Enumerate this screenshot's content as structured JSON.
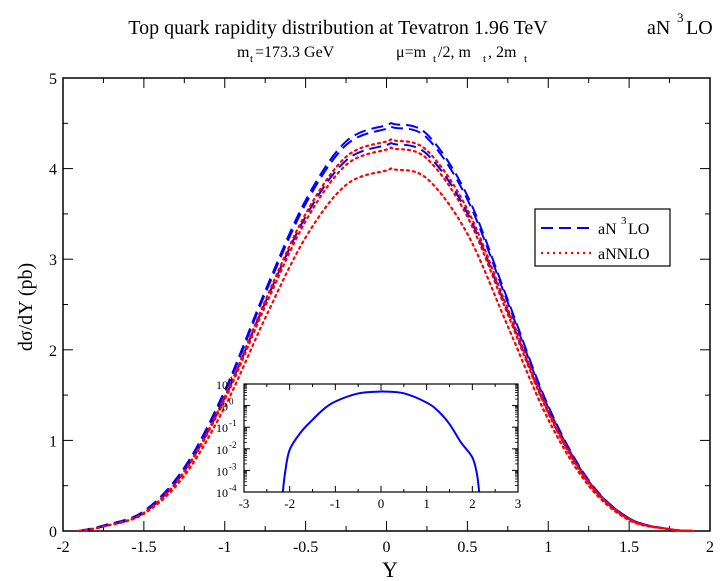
{
  "title": {
    "main": "Top quark rapidity distribution at Tevatron 1.96 TeV",
    "order_prefix": "aN",
    "order_sup": "3",
    "order_suffix": "LO",
    "sub_m": "m",
    "sub_t": "t",
    "sub_mass": "=173.3 GeV",
    "sub_mu": "μ=m",
    "sub_mu_rest1": "/2, m",
    "sub_mu_rest2": ", 2m"
  },
  "chart_data": [
    {
      "type": "line",
      "xlabel": "Y",
      "ylabel": "dσ/dY (pb)",
      "xlim": [
        -2,
        2
      ],
      "ylim": [
        0,
        5
      ],
      "xticks": [
        -2,
        -1.5,
        -1,
        -0.5,
        0,
        0.5,
        1,
        1.5,
        2
      ],
      "yticks": [
        0,
        1,
        2,
        3,
        4,
        5
      ],
      "legend": {
        "placement": "right",
        "entries": [
          {
            "label_prefix": "aN",
            "label_sup": "3",
            "label_suffix": "LO",
            "style": "dashed",
            "color": "#0000ff"
          },
          {
            "label_prefix": "aNNLO",
            "label_sup": "",
            "label_suffix": "",
            "style": "dotted",
            "color": "#ff0000"
          }
        ]
      },
      "x": [
        -1.9,
        -1.75,
        -1.5,
        -1.25,
        -1.0,
        -0.75,
        -0.5,
        -0.25,
        0.0,
        0.05,
        0.25,
        0.5,
        0.75,
        1.0,
        1.25,
        1.5,
        1.75,
        1.9
      ],
      "series": [
        {
          "group": "aN3LO",
          "style": "dashed",
          "color": "#0000ff",
          "values": [
            0.0,
            0.06,
            0.22,
            0.7,
            1.55,
            2.65,
            3.65,
            4.3,
            4.48,
            4.49,
            4.38,
            3.7,
            2.55,
            1.38,
            0.56,
            0.14,
            0.02,
            0.0
          ]
        },
        {
          "group": "aN3LO",
          "style": "dashed",
          "color": "#0000ff",
          "values": [
            0.0,
            0.06,
            0.21,
            0.69,
            1.53,
            2.62,
            3.61,
            4.26,
            4.44,
            4.45,
            4.34,
            3.66,
            2.52,
            1.36,
            0.55,
            0.14,
            0.02,
            0.0
          ]
        },
        {
          "group": "aN3LO",
          "style": "dashed",
          "color": "#0000ff",
          "values": [
            0.0,
            0.05,
            0.2,
            0.66,
            1.47,
            2.52,
            3.47,
            4.09,
            4.26,
            4.27,
            4.16,
            3.51,
            2.42,
            1.31,
            0.53,
            0.13,
            0.02,
            0.0
          ]
        },
        {
          "group": "aNNLO",
          "style": "dotted",
          "color": "#ff0000",
          "values": [
            0.0,
            0.05,
            0.2,
            0.66,
            1.48,
            2.54,
            3.5,
            4.13,
            4.3,
            4.31,
            4.2,
            3.55,
            2.45,
            1.33,
            0.54,
            0.13,
            0.02,
            0.0
          ]
        },
        {
          "group": "aNNLO",
          "style": "dotted",
          "color": "#ff0000",
          "values": [
            0.0,
            0.05,
            0.2,
            0.65,
            1.45,
            2.48,
            3.42,
            4.04,
            4.21,
            4.22,
            4.11,
            3.47,
            2.39,
            1.3,
            0.53,
            0.13,
            0.02,
            0.0
          ]
        },
        {
          "group": "aNNLO",
          "style": "dotted",
          "color": "#ff0000",
          "values": [
            0.0,
            0.05,
            0.19,
            0.61,
            1.37,
            2.35,
            3.24,
            3.82,
            3.98,
            3.99,
            3.89,
            3.28,
            2.26,
            1.23,
            0.5,
            0.12,
            0.02,
            0.0
          ]
        }
      ]
    },
    {
      "type": "line",
      "title": "",
      "xlabel": "",
      "ylabel": "",
      "scale_y": "log",
      "xlim": [
        -3,
        3
      ],
      "ylim_exp": [
        -4,
        1
      ],
      "xticks": [
        -3,
        -2,
        -1,
        0,
        1,
        2,
        3
      ],
      "ytick_exponents": [
        1,
        0,
        -1,
        -2,
        -3,
        -4
      ],
      "ytick_base": "10",
      "x": [
        -2.15,
        -2.1,
        -2.0,
        -1.75,
        -1.5,
        -1.25,
        -1.0,
        -0.5,
        0.0,
        0.05,
        0.5,
        1.0,
        1.25,
        1.5,
        1.75,
        2.0,
        2.1,
        2.15
      ],
      "series": [
        {
          "color": "#0000ff",
          "style": "solid",
          "values": [
            9e-05,
            0.0008,
            0.009,
            0.06,
            0.22,
            0.7,
            1.55,
            3.65,
            4.48,
            4.49,
            3.7,
            1.38,
            0.56,
            0.14,
            0.02,
            0.004,
            0.0007,
            9e-05
          ]
        }
      ]
    }
  ]
}
